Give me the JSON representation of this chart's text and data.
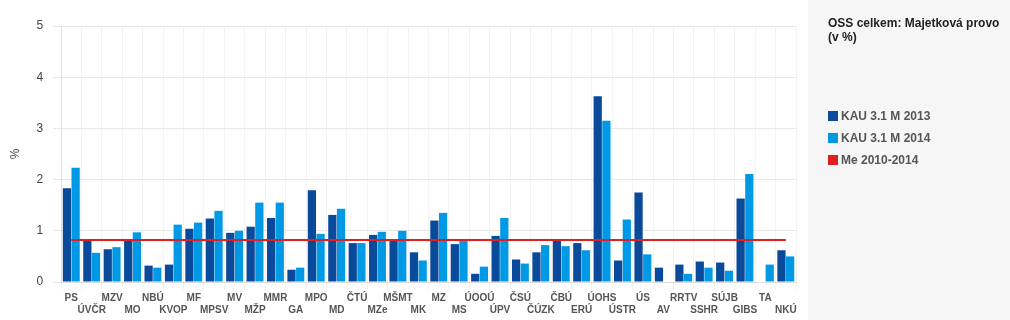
{
  "chart_data": {
    "type": "bar",
    "title": "OSS celkem: Majetková provo (v %)",
    "ylabel": "%",
    "categories": [
      "PS",
      "ÚVČR",
      "MZV",
      "MO",
      "NBÚ",
      "KVOP",
      "MF",
      "MPSV",
      "MV",
      "MŽP",
      "MMR",
      "GA",
      "MPO",
      "MD",
      "ČTÚ",
      "MZe",
      "MŠMT",
      "MK",
      "MZ",
      "MS",
      "ÚOOÚ",
      "ÚPV",
      "ČSÚ",
      "ČÚZK",
      "ČBÚ",
      "ERÚ",
      "ÚOHS",
      "ÚSTR",
      "ÚS",
      "AV",
      "RRTV",
      "SSHR",
      "SÚJB",
      "GIBS",
      "TA",
      "NKÚ"
    ],
    "series": [
      {
        "name": "KAU 3.1 M 2013",
        "color": "#0a4a9a",
        "values": [
          1.83,
          0.84,
          0.64,
          0.81,
          0.32,
          0.34,
          1.04,
          1.24,
          0.96,
          1.08,
          1.25,
          0.24,
          1.79,
          1.31,
          0.76,
          0.92,
          0.8,
          0.58,
          1.2,
          0.74,
          0.16,
          0.9,
          0.44,
          0.58,
          0.84,
          0.76,
          3.63,
          0.42,
          1.75,
          0.28,
          0.34,
          0.4,
          0.38,
          1.63,
          null,
          0.62
        ]
      },
      {
        "name": "KAU 3.1 M 2014",
        "color": "#0099e6",
        "values": [
          2.23,
          0.57,
          0.68,
          0.97,
          0.28,
          1.12,
          1.16,
          1.39,
          1.0,
          1.55,
          1.55,
          0.28,
          0.94,
          1.43,
          0.76,
          0.98,
          1.0,
          0.42,
          1.35,
          0.8,
          0.3,
          1.25,
          0.36,
          0.72,
          0.7,
          0.62,
          3.15,
          1.22,
          0.54,
          null,
          0.16,
          0.28,
          0.22,
          2.11,
          0.34,
          0.5
        ]
      },
      {
        "name": "Me 2010-2014",
        "type": "line",
        "color": "#e02020",
        "values": [
          0.82,
          0.82,
          0.82,
          0.82,
          0.82,
          0.82,
          0.82,
          0.82,
          0.82,
          0.82,
          0.82,
          0.82,
          0.82,
          0.82,
          0.82,
          0.82,
          0.82,
          0.82,
          0.82,
          0.82,
          0.82,
          0.82,
          0.82,
          0.82,
          0.82,
          0.82,
          0.82,
          0.82,
          0.82,
          0.82,
          0.82,
          0.82,
          0.82,
          0.82,
          0.82,
          0.82
        ]
      }
    ],
    "ylim": [
      0,
      5
    ],
    "yticks": [
      0,
      1,
      2,
      3,
      4,
      5
    ],
    "grid": true,
    "legend": "right",
    "marker": "none"
  }
}
